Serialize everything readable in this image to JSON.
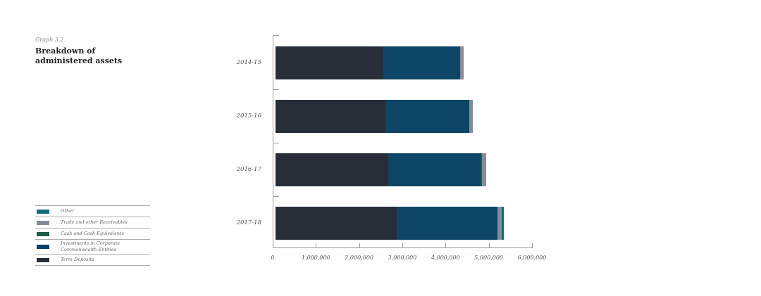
{
  "caption": "Graph 3.2",
  "title": "Breakdown of administered assets",
  "legend": [
    {
      "label": "Other",
      "color": "#0e6f7a"
    },
    {
      "label": "Trade and other Receivables",
      "color": "#868b96"
    },
    {
      "label": "Cash and Cash Equivalents",
      "color": "#1e5e49"
    },
    {
      "label": "Investments in Corporate Commonwealth Entities",
      "color": "#0c3f65"
    },
    {
      "label": "Term Deposits",
      "color": "#272e38"
    }
  ],
  "chart_data": {
    "type": "bar",
    "orientation": "horizontal",
    "stacked": true,
    "title": "Breakdown of administered assets",
    "subtitle": "Graph 3.2",
    "categories": [
      "2014-15",
      "2015-16",
      "2016-17",
      "2017-18"
    ],
    "series": [
      {
        "name": "Term Deposits",
        "color": "#272e38",
        "values": [
          2480000,
          2540000,
          2610000,
          2810000
        ]
      },
      {
        "name": "Investments in Corporate Commonwealth Entities",
        "color": "#0c4565",
        "values": [
          1790000,
          1940000,
          2140000,
          2330000
        ]
      },
      {
        "name": "Cash and Cash Equivalents",
        "color": "#1e5e49",
        "values": [
          0,
          0,
          30000,
          0
        ]
      },
      {
        "name": "Trade and other Receivables",
        "color": "#868b96",
        "values": [
          80000,
          80000,
          100000,
          100000
        ]
      },
      {
        "name": "Other",
        "color": "#0e6f7a",
        "values": [
          0,
          0,
          0,
          50000
        ]
      }
    ],
    "xlabel": "",
    "ylabel": "",
    "xlim": [
      0,
      6000000
    ],
    "xticks": [
      "0",
      "1,000,000",
      "2,000,000",
      "3,000,000",
      "4,000,000",
      "5,000,000",
      "6,000,000"
    ],
    "grid": false,
    "legend_position": "left-bottom"
  }
}
